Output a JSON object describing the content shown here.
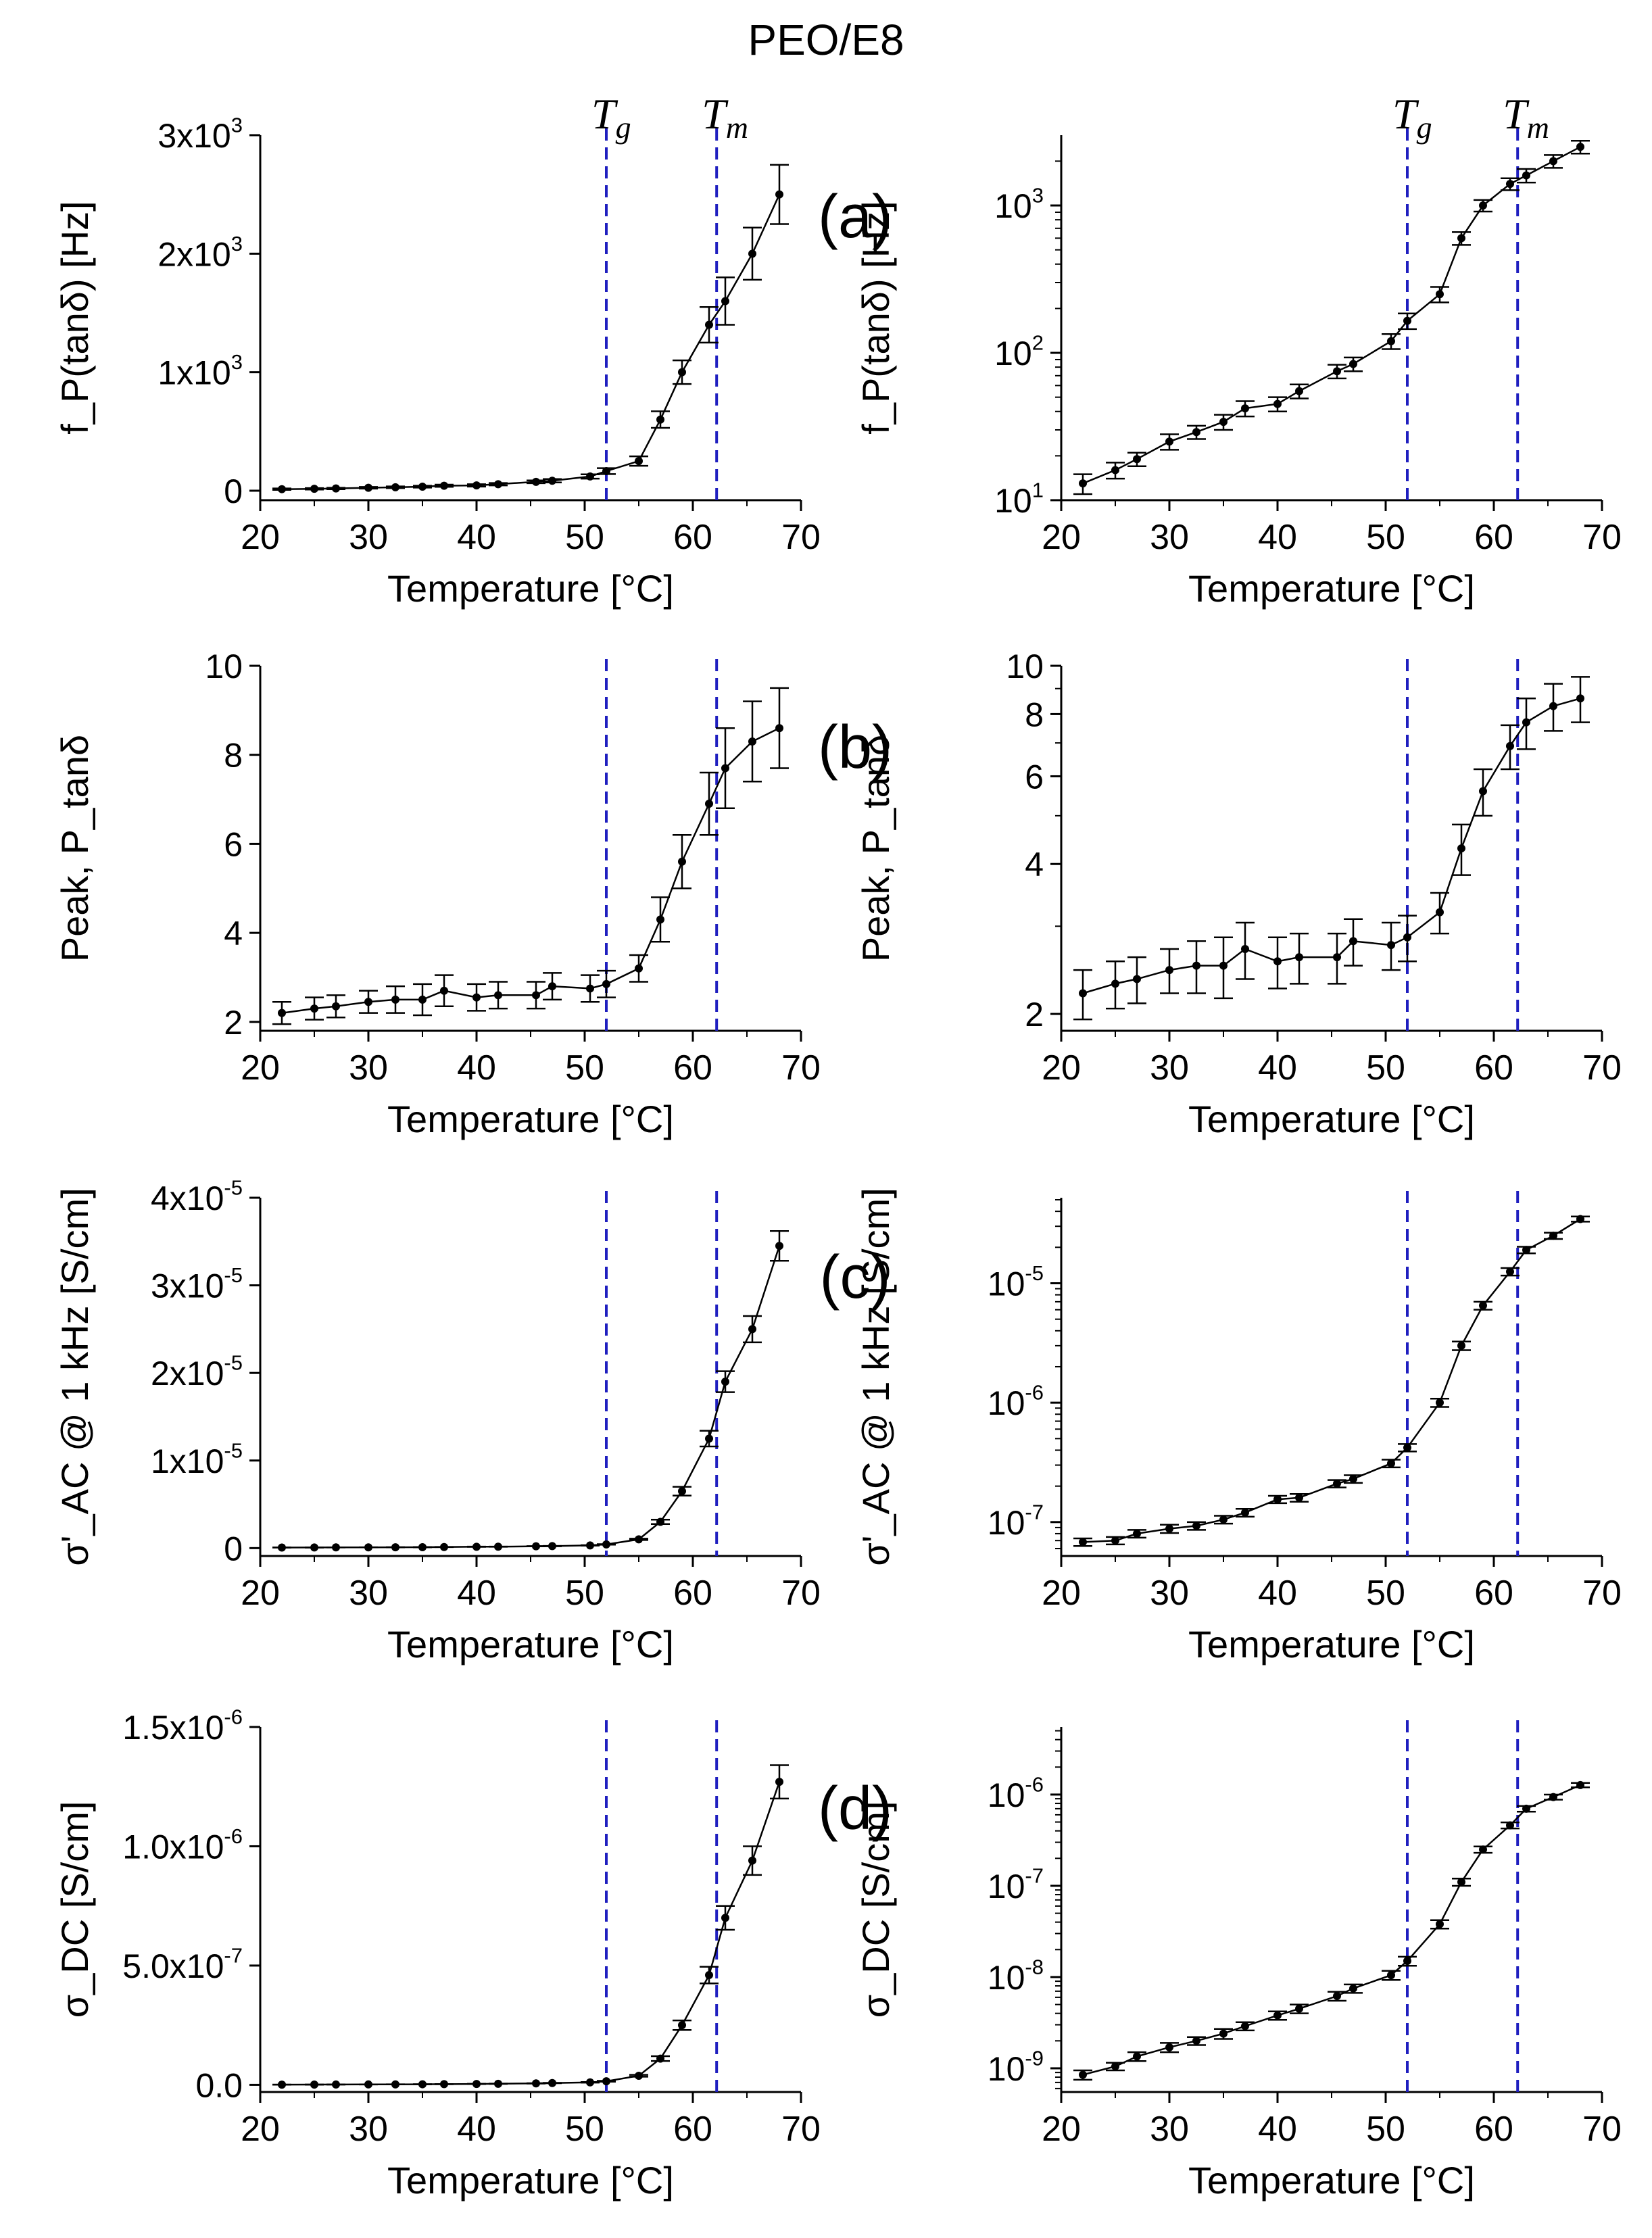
{
  "title": "PEO/E8",
  "colors": {
    "data": "#000000",
    "marker_lines": "#1f1fbf"
  },
  "markers": {
    "tg_temp": 52.0,
    "tm_temp": 62.2
  },
  "temperatures": [
    22,
    25,
    27,
    30,
    32.5,
    35,
    37,
    40,
    42,
    45.5,
    47,
    50.5,
    52,
    55,
    57,
    59,
    61.5,
    63,
    65.5,
    68
  ],
  "chart_data": [
    {
      "id": "a-lin",
      "type": "line",
      "panel_label": "(a)",
      "scale": "linear",
      "xlabel": "Temperature [°C]",
      "ylabel": "f_P(tanδ) [Hz]",
      "xlim": [
        20,
        70
      ],
      "xticks": [
        "20",
        "30",
        "40",
        "50",
        "60",
        "70"
      ],
      "ylim": [
        -80,
        3000
      ],
      "yticks": [
        "0",
        "1x10^3",
        "2x10^3",
        "3x10^3"
      ],
      "values": [
        13,
        16,
        19,
        25,
        29,
        34,
        42,
        45,
        55,
        75,
        84,
        120,
        165,
        250,
        600,
        1000,
        1400,
        1600,
        2000,
        2500
      ],
      "errors": [
        6,
        6,
        6,
        7,
        7,
        8,
        9,
        10,
        10,
        12,
        14,
        18,
        25,
        40,
        70,
        100,
        150,
        200,
        220,
        250
      ]
    },
    {
      "id": "a-log",
      "type": "line",
      "scale": "log",
      "xlabel": "Temperature [°C]",
      "ylabel": "f_P(tanδ) [Hz]",
      "xlim": [
        20,
        70
      ],
      "xticks": [
        "20",
        "30",
        "40",
        "50",
        "60",
        "70"
      ],
      "ylim": [
        10,
        3000
      ],
      "yticks": [
        "10^1",
        "10^2",
        "10^3"
      ],
      "values": [
        13,
        16,
        19,
        25,
        29,
        34,
        42,
        45,
        55,
        75,
        84,
        120,
        165,
        250,
        600,
        1000,
        1400,
        1600,
        2000,
        2500
      ],
      "errors": [
        2,
        2,
        2,
        3,
        3,
        4,
        5,
        5,
        6,
        8,
        9,
        14,
        20,
        30,
        60,
        90,
        130,
        170,
        200,
        250
      ]
    },
    {
      "id": "b-lin",
      "type": "line",
      "panel_label": "(b)",
      "scale": "linear",
      "xlabel": "Temperature [°C]",
      "ylabel": "Peak, P_tanδ",
      "xlim": [
        20,
        70
      ],
      "xticks": [
        "20",
        "30",
        "40",
        "50",
        "60",
        "70"
      ],
      "ylim": [
        1.8,
        10
      ],
      "yticks": [
        "2",
        "4",
        "6",
        "8",
        "10"
      ],
      "values": [
        2.2,
        2.3,
        2.35,
        2.45,
        2.5,
        2.5,
        2.7,
        2.55,
        2.6,
        2.6,
        2.8,
        2.75,
        2.85,
        3.2,
        4.3,
        5.6,
        6.9,
        7.7,
        8.3,
        8.6
      ],
      "errors": [
        0.25,
        0.25,
        0.25,
        0.25,
        0.3,
        0.35,
        0.35,
        0.3,
        0.3,
        0.3,
        0.3,
        0.3,
        0.3,
        0.3,
        0.5,
        0.6,
        0.7,
        0.9,
        0.9,
        0.9
      ]
    },
    {
      "id": "b-log",
      "type": "line",
      "scale": "log",
      "xlabel": "Temperature [°C]",
      "ylabel": "Peak, P_tanδ",
      "xlim": [
        20,
        70
      ],
      "xticks": [
        "20",
        "30",
        "40",
        "50",
        "60",
        "70"
      ],
      "ylim": [
        1.85,
        10
      ],
      "yticks": [
        "2",
        "4",
        "6",
        "8",
        "10"
      ],
      "values": [
        2.2,
        2.3,
        2.35,
        2.45,
        2.5,
        2.5,
        2.7,
        2.55,
        2.6,
        2.6,
        2.8,
        2.75,
        2.85,
        3.2,
        4.3,
        5.6,
        6.9,
        7.7,
        8.3,
        8.6
      ],
      "errors": [
        0.25,
        0.25,
        0.25,
        0.25,
        0.3,
        0.35,
        0.35,
        0.3,
        0.3,
        0.3,
        0.3,
        0.3,
        0.3,
        0.3,
        0.5,
        0.6,
        0.7,
        0.9,
        0.9,
        0.9
      ]
    },
    {
      "id": "c-lin",
      "type": "line",
      "panel_label": "(c)",
      "scale": "linear",
      "xlabel": "Temperature [°C]",
      "ylabel": "σ'_AC @ 1 kHz [S/cm]",
      "xlim": [
        20,
        70
      ],
      "xticks": [
        "20",
        "30",
        "40",
        "50",
        "60",
        "70"
      ],
      "ylim": [
        -9e-07,
        4e-05
      ],
      "yticks": [
        "0",
        "1x10^-5",
        "2x10^-5",
        "3x10^-5",
        "4x10^-5"
      ],
      "values": [
        6.8e-08,
        7e-08,
        8e-08,
        8.8e-08,
        9.3e-08,
        1.05e-07,
        1.2e-07,
        1.55e-07,
        1.6e-07,
        2.1e-07,
        2.3e-07,
        3.1e-07,
        4.2e-07,
        1e-06,
        3e-06,
        6.5e-06,
        1.25e-05,
        1.9e-05,
        2.5e-05,
        3.45e-05
      ],
      "errors": [
        5e-09,
        5e-09,
        6e-09,
        7e-09,
        7e-09,
        8e-09,
        9e-09,
        1.1e-08,
        1.2e-08,
        1.5e-08,
        1.7e-08,
        2.3e-08,
        3e-08,
        8e-08,
        2.5e-07,
        5e-07,
        9e-07,
        1.2e-06,
        1.5e-06,
        1.7e-06
      ]
    },
    {
      "id": "c-log",
      "type": "line",
      "scale": "log",
      "xlabel": "Temperature [°C]",
      "ylabel": "σ'_AC @ 1 kHz [S/cm]",
      "xlim": [
        20,
        70
      ],
      "xticks": [
        "20",
        "30",
        "40",
        "50",
        "60",
        "70"
      ],
      "ylim": [
        5.2e-08,
        5.2e-05
      ],
      "yticks": [
        "10^-7",
        "10^-6",
        "10^-5"
      ],
      "values": [
        6.8e-08,
        7e-08,
        8e-08,
        8.8e-08,
        9.3e-08,
        1.05e-07,
        1.2e-07,
        1.55e-07,
        1.6e-07,
        2.1e-07,
        2.3e-07,
        3.1e-07,
        4.2e-07,
        1e-06,
        3e-06,
        6.5e-06,
        1.25e-05,
        1.9e-05,
        2.5e-05,
        3.45e-05
      ],
      "errors": [
        5e-09,
        5e-09,
        6e-09,
        7e-09,
        7e-09,
        8e-09,
        9e-09,
        1.1e-08,
        1.2e-08,
        1.5e-08,
        1.7e-08,
        2.3e-08,
        3e-08,
        8e-08,
        2.5e-07,
        5e-07,
        9e-07,
        1.2e-06,
        1.5e-06,
        1.7e-06
      ]
    },
    {
      "id": "d-lin",
      "type": "line",
      "panel_label": "(d)",
      "scale": "linear",
      "xlabel": "Temperature [°C]",
      "ylabel": "σ_DC [S/cm]",
      "xlim": [
        20,
        70
      ],
      "xticks": [
        "20",
        "30",
        "40",
        "50",
        "60",
        "70"
      ],
      "ylim": [
        -3e-08,
        1.5e-06
      ],
      "yticks": [
        "0.0",
        "5.0x10^-7",
        "1.0x10^-6",
        "1.5x10^-6"
      ],
      "values": [
        8.5e-10,
        1.05e-09,
        1.35e-09,
        1.7e-09,
        2e-09,
        2.4e-09,
        2.9e-09,
        3.8e-09,
        4.5e-09,
        6.2e-09,
        7.5e-09,
        1.05e-08,
        1.5e-08,
        3.8e-08,
        1.1e-07,
        2.5e-07,
        4.6e-07,
        7e-07,
        9.4e-07,
        1.27e-06
      ],
      "errors": [
        1e-10,
        1e-10,
        1.5e-10,
        2e-10,
        2e-10,
        3e-10,
        3e-10,
        4e-10,
        5e-10,
        7e-10,
        8e-10,
        1.2e-09,
        1.7e-09,
        4e-09,
        1e-08,
        2e-08,
        3.5e-08,
        5e-08,
        6e-08,
        7e-08
      ]
    },
    {
      "id": "d-log",
      "type": "line",
      "scale": "log",
      "xlabel": "Temperature [°C]",
      "ylabel": "σ_DC [S/cm]",
      "xlim": [
        20,
        70
      ],
      "xticks": [
        "20",
        "30",
        "40",
        "50",
        "60",
        "70"
      ],
      "ylim": [
        5.5e-10,
        5.5e-06
      ],
      "yticks": [
        "10^-9",
        "10^-8",
        "10^-7",
        "10^-6"
      ],
      "values": [
        8.5e-10,
        1.05e-09,
        1.35e-09,
        1.7e-09,
        2e-09,
        2.4e-09,
        2.9e-09,
        3.8e-09,
        4.5e-09,
        6.2e-09,
        7.5e-09,
        1.05e-08,
        1.5e-08,
        3.8e-08,
        1.1e-07,
        2.5e-07,
        4.6e-07,
        7e-07,
        9.4e-07,
        1.27e-06
      ],
      "errors": [
        1e-10,
        1e-10,
        1.5e-10,
        2e-10,
        2e-10,
        3e-10,
        3e-10,
        4e-10,
        5e-10,
        7e-10,
        8e-10,
        1.2e-09,
        1.7e-09,
        4e-09,
        1e-08,
        2e-08,
        3.5e-08,
        5e-08,
        6e-08,
        7e-08
      ]
    }
  ]
}
